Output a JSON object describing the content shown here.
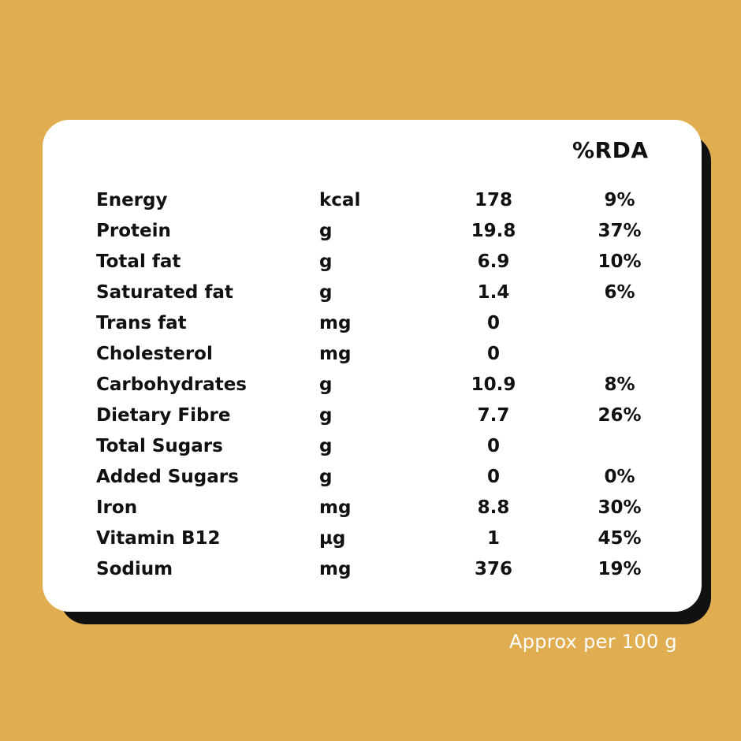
{
  "table": {
    "rda_header": "%RDA",
    "rows": [
      {
        "name": "Energy",
        "unit": "kcal",
        "value": "178",
        "rda": "9%"
      },
      {
        "name": "Protein",
        "unit": "g",
        "value": "19.8",
        "rda": "37%"
      },
      {
        "name": "Total fat",
        "unit": "g",
        "value": "6.9",
        "rda": "10%"
      },
      {
        "name": "Saturated fat",
        "unit": "g",
        "value": "1.4",
        "rda": "6%"
      },
      {
        "name": "Trans fat",
        "unit": "mg",
        "value": "0",
        "rda": ""
      },
      {
        "name": "Cholesterol",
        "unit": "mg",
        "value": "0",
        "rda": ""
      },
      {
        "name": "Carbohydrates",
        "unit": "g",
        "value": "10.9",
        "rda": "8%"
      },
      {
        "name": "Dietary Fibre",
        "unit": "g",
        "value": "7.7",
        "rda": "26%"
      },
      {
        "name": "Total Sugars",
        "unit": "g",
        "value": "0",
        "rda": ""
      },
      {
        "name": "Added Sugars",
        "unit": "g",
        "value": "0",
        "rda": "0%"
      },
      {
        "name": "Iron",
        "unit": "mg",
        "value": "8.8",
        "rda": "30%"
      },
      {
        "name": "Vitamin B12",
        "unit": "µg",
        "value": "1",
        "rda": "45%"
      },
      {
        "name": "Sodium",
        "unit": "mg",
        "value": "376",
        "rda": "19%"
      }
    ]
  },
  "footnote": "Approx per 100 g",
  "colors": {
    "background": "#E0AE51",
    "card": "#FFFFFF",
    "shadow": "#111111",
    "text": "#111111",
    "footnote": "#FFFFFF"
  }
}
